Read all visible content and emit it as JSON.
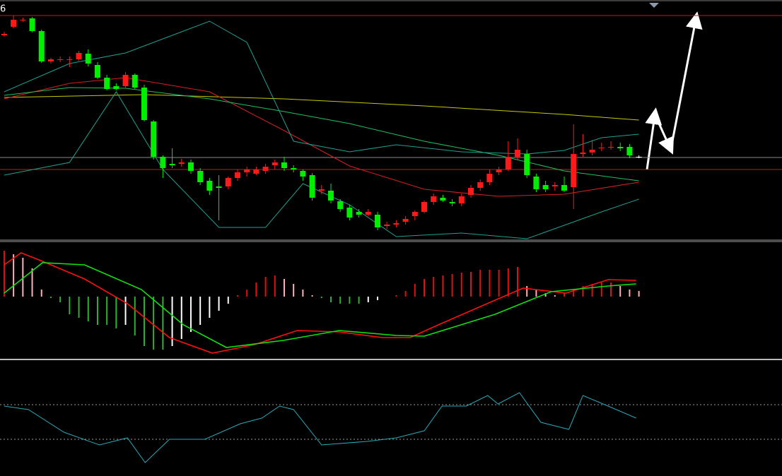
{
  "chart_data": [
    {
      "type": "candlestick",
      "title": "6",
      "xlim": [
        -0.45,
        83.33
      ],
      "ylim": [
        0,
        340
      ],
      "up_color": "#ff1a1a",
      "down_color": "#00ee00",
      "flat_color": "#ffffff",
      "open": [
        290,
        302,
        311,
        314,
        296,
        253,
        255,
        255,
        256,
        264,
        248,
        230,
        218,
        218,
        234,
        216,
        168,
        118,
        108,
        108,
        110,
        98,
        84,
        76,
        76,
        88,
        96,
        94,
        98,
        106,
        110,
        102,
        98,
        92,
        70,
        70,
        55,
        46,
        40,
        36,
        36,
        20,
        22,
        26,
        34,
        40,
        54,
        60,
        54,
        52,
        64,
        74,
        82,
        96,
        100,
        118,
        122,
        90,
        78,
        76,
        78,
        75,
        122,
        124,
        130,
        131,
        132,
        132,
        118
      ],
      "close": [
        292,
        312,
        312,
        296,
        253,
        256,
        256,
        256,
        265,
        250,
        230,
        214,
        214,
        234,
        216,
        170,
        118,
        102,
        106,
        110,
        98,
        82,
        70,
        74,
        88,
        96,
        100,
        100,
        104,
        110,
        102,
        100,
        90,
        60,
        72,
        56,
        44,
        32,
        36,
        40,
        18,
        22,
        24,
        30,
        40,
        54,
        62,
        56,
        52,
        62,
        74,
        82,
        94,
        100,
        118,
        128,
        92,
        72,
        72,
        78,
        70,
        122,
        124,
        128,
        131,
        132,
        130,
        120,
        118
      ],
      "high": [
        295,
        318,
        315,
        316,
        298,
        258,
        260,
        260,
        268,
        270,
        252,
        234,
        222,
        238,
        236,
        220,
        170,
        120,
        130,
        115,
        114,
        102,
        88,
        92,
        90,
        100,
        104,
        104,
        108,
        114,
        118,
        106,
        100,
        95,
        78,
        80,
        58,
        50,
        44,
        44,
        40,
        26,
        28,
        34,
        42,
        56,
        66,
        64,
        58,
        66,
        78,
        86,
        100,
        104,
        140,
        144,
        128,
        94,
        84,
        82,
        90,
        164,
        150,
        142,
        138,
        140,
        138,
        136,
        120
      ],
      "low": [
        288,
        300,
        309,
        294,
        251,
        250,
        252,
        245,
        254,
        246,
        228,
        212,
        212,
        216,
        214,
        168,
        114,
        88,
        102,
        104,
        94,
        78,
        64,
        28,
        72,
        84,
        90,
        92,
        94,
        100,
        98,
        96,
        84,
        56,
        65,
        52,
        40,
        28,
        32,
        34,
        14,
        16,
        18,
        22,
        28,
        38,
        50,
        54,
        48,
        48,
        60,
        70,
        78,
        92,
        98,
        114,
        88,
        68,
        68,
        70,
        68,
        44,
        118,
        120,
        126,
        128,
        126,
        116,
        116
      ],
      "levels": [
        {
          "value": 318,
          "color": "#c81818"
        },
        {
          "value": 100,
          "color": "#c81818"
        },
        {
          "value": 117,
          "color": "#8a8a8a"
        }
      ],
      "series": [
        {
          "color": "#c8c800",
          "x": [
            0,
            15,
            30,
            45,
            60,
            68
          ],
          "values": [
            202,
            206,
            200,
            190,
            178,
            170
          ]
        },
        {
          "color": "#d82020",
          "x": [
            0,
            7,
            13,
            22,
            30,
            37,
            45,
            53,
            60,
            68
          ],
          "values": [
            200,
            222,
            230,
            210,
            155,
            105,
            72,
            62,
            65,
            82
          ]
        },
        {
          "color": "#20c060",
          "x": [
            0,
            7,
            13,
            22,
            30,
            37,
            45,
            53,
            60,
            68
          ],
          "values": [
            205,
            216,
            215,
            200,
            182,
            165,
            140,
            120,
            98,
            84
          ]
        },
        {
          "color": "#20a090",
          "x": [
            0,
            7,
            13,
            22,
            26,
            31,
            37,
            42,
            49,
            56,
            60,
            64,
            68
          ],
          "values": [
            210,
            250,
            265,
            310,
            280,
            140,
            125,
            135,
            125,
            122,
            127,
            145,
            150
          ]
        },
        {
          "color": "#20a090",
          "x": [
            0,
            7,
            12,
            17,
            23,
            28,
            32,
            37,
            42,
            49,
            56,
            64,
            68
          ],
          "values": [
            92,
            110,
            210,
            100,
            18,
            18,
            80,
            50,
            5,
            10,
            2,
            40,
            58
          ]
        }
      ]
    },
    {
      "type": "macd",
      "xlim": [
        -0.45,
        83.33
      ],
      "ylim": [
        -88,
        78
      ],
      "up_color": "#e01010",
      "up_fade_color": "#ffb0b8",
      "down_color": "#30b030",
      "down_fade_color": "#ffffff",
      "values": [
        65,
        60,
        55,
        40,
        10,
        -2,
        -8,
        -25,
        -30,
        -35,
        -40,
        -40,
        -45,
        -40,
        -55,
        -70,
        -75,
        -75,
        -70,
        -60,
        -50,
        -40,
        -30,
        -20,
        -10,
        2,
        10,
        20,
        28,
        30,
        25,
        18,
        10,
        2,
        -2,
        -8,
        -10,
        -10,
        -10,
        -8,
        -5,
        0,
        2,
        8,
        18,
        25,
        28,
        30,
        32,
        34,
        35,
        38,
        38,
        38,
        40,
        42,
        15,
        10,
        5,
        2,
        5,
        10,
        15,
        18,
        20,
        20,
        15,
        10,
        8
      ],
      "series": [
        {
          "color": "#ff1010",
          "x": [
            0,
            1.8,
            4.1,
            8.6,
            13.2,
            17.7,
            22.3,
            26.8,
            31.4,
            35.9,
            40.5,
            43.5,
            46.5,
            52.6,
            55.6,
            60.2,
            64.7,
            67.7
          ],
          "values": [
            45,
            62,
            50,
            25,
            -10,
            -58,
            -80,
            -68,
            -48,
            -50,
            -58,
            -58,
            -40,
            -5,
            12,
            5,
            24,
            23
          ]
        },
        {
          "color": "#10e010",
          "x": [
            0,
            4.1,
            8.6,
            14.7,
            19.2,
            23.8,
            29.9,
            35.9,
            42,
            45,
            52.6,
            58.6,
            64.7,
            67.7
          ],
          "values": [
            5,
            48,
            45,
            10,
            -40,
            -72,
            -62,
            -48,
            -55,
            -56,
            -25,
            7,
            15,
            18
          ]
        }
      ]
    },
    {
      "type": "line",
      "xlim": [
        -0.45,
        83.33
      ],
      "ylim": [
        0,
        163
      ],
      "levels": [
        {
          "value": 101,
          "color": "#9a9a9a"
        },
        {
          "value": 52,
          "color": "#9a9a9a"
        }
      ],
      "series": [
        {
          "color": "#2aa8b8",
          "x": [
            0,
            2.6,
            6.4,
            10.2,
            13.2,
            15.1,
            17.7,
            21.5,
            25.3,
            27.6,
            29.5,
            31,
            34,
            38.9,
            42,
            45,
            46.9,
            49.5,
            51.8,
            52.9,
            55.2,
            57.5,
            60.5,
            62,
            64.7,
            67.7
          ],
          "values": [
            99,
            94,
            62,
            44,
            54,
            19,
            52,
            52,
            74,
            82,
            99,
            94,
            44,
            49,
            54,
            64,
            99,
            99,
            114,
            102,
            118,
            76,
            66,
            114,
            99,
            82
          ]
        }
      ]
    }
  ]
}
